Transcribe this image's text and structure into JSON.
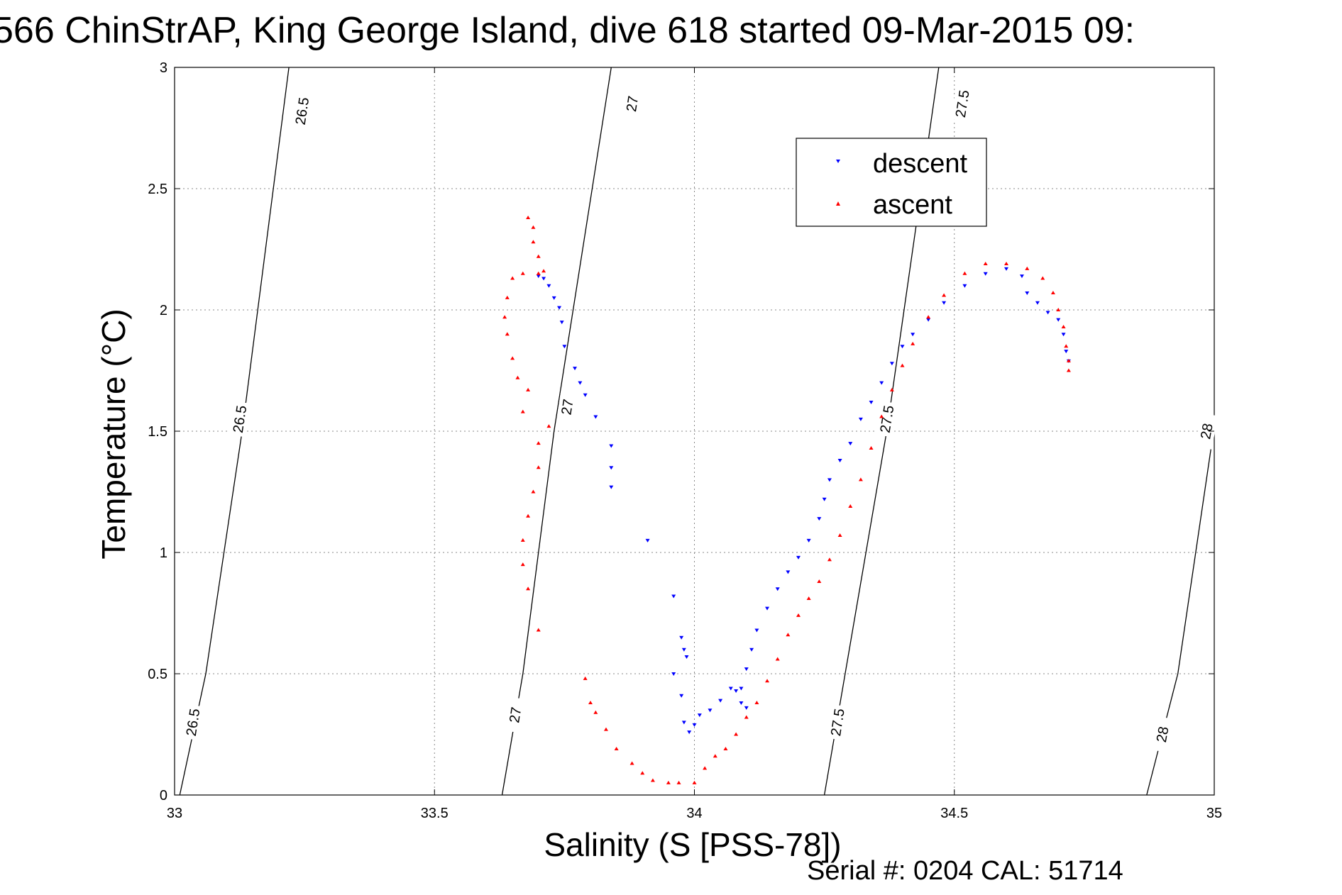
{
  "chart_data": {
    "type": "scatter",
    "title": "566 ChinStrAP, King George Island, dive 618 started 09-Mar-2015 09:",
    "xlabel": "Salinity (S [PSS-78])",
    "ylabel": "Temperature (°C)",
    "xlim": [
      33,
      35
    ],
    "ylim": [
      0,
      3
    ],
    "x_ticks": [
      33,
      33.5,
      34,
      34.5,
      35
    ],
    "y_ticks": [
      0,
      0.5,
      1,
      1.5,
      2,
      2.5,
      3
    ],
    "x_tick_labels": [
      "33",
      "33.5",
      "34",
      "34.5",
      "35"
    ],
    "y_tick_labels": [
      "0",
      "0.5",
      "1",
      "1.5",
      "2",
      "2.5",
      "3"
    ],
    "grid": true,
    "legend_position": "top-right",
    "footer": "Serial #: 0204  CAL: 51714",
    "colors": {
      "descent": "#0000ff",
      "ascent": "#ff0000",
      "contour": "#000000",
      "grid": "#888888"
    },
    "density_contours": [
      {
        "sigma": "26.5",
        "points": [
          [
            33.01,
            0
          ],
          [
            33.06,
            0.5
          ],
          [
            33.13,
            1.5
          ],
          [
            33.22,
            3
          ]
        ],
        "labels": [
          {
            "text": "26.5",
            "x": 33.035,
            "y": 0.3
          },
          {
            "text": "26.5",
            "x": 33.125,
            "y": 1.55
          },
          {
            "text": "26.5",
            "x": 33.245,
            "y": 2.82
          }
        ]
      },
      {
        "sigma": "27",
        "points": [
          [
            33.63,
            0
          ],
          [
            33.67,
            0.5
          ],
          [
            33.73,
            1.5
          ],
          [
            33.84,
            3
          ]
        ],
        "labels": [
          {
            "text": "27",
            "x": 33.655,
            "y": 0.33
          },
          {
            "text": "27",
            "x": 33.755,
            "y": 1.6
          },
          {
            "text": "27",
            "x": 33.88,
            "y": 2.85
          }
        ]
      },
      {
        "sigma": "27.5",
        "points": [
          [
            34.25,
            0
          ],
          [
            34.29,
            0.5
          ],
          [
            34.37,
            1.5
          ],
          [
            34.47,
            3
          ]
        ],
        "labels": [
          {
            "text": "27.5",
            "x": 34.275,
            "y": 0.3
          },
          {
            "text": "27.5",
            "x": 34.37,
            "y": 1.55
          },
          {
            "text": "27.5",
            "x": 34.515,
            "y": 2.85
          }
        ]
      },
      {
        "sigma": "28",
        "points": [
          [
            34.87,
            0
          ],
          [
            34.93,
            0.5
          ],
          [
            35,
            1.52
          ]
        ],
        "labels": [
          {
            "text": "28",
            "x": 34.9,
            "y": 0.25
          },
          {
            "text": "28",
            "x": 34.985,
            "y": 1.5
          }
        ]
      }
    ],
    "series": [
      {
        "name": "descent",
        "marker": "downward triangle",
        "points": [
          [
            33.7,
            2.14
          ],
          [
            33.71,
            2.13
          ],
          [
            33.72,
            2.1
          ],
          [
            33.73,
            2.05
          ],
          [
            33.74,
            2.01
          ],
          [
            33.745,
            1.95
          ],
          [
            33.75,
            1.85
          ],
          [
            33.77,
            1.76
          ],
          [
            33.78,
            1.7
          ],
          [
            33.79,
            1.65
          ],
          [
            33.81,
            1.56
          ],
          [
            33.84,
            1.44
          ],
          [
            33.84,
            1.35
          ],
          [
            33.84,
            1.27
          ],
          [
            33.91,
            1.05
          ],
          [
            33.96,
            0.82
          ],
          [
            33.975,
            0.65
          ],
          [
            33.98,
            0.6
          ],
          [
            33.985,
            0.57
          ],
          [
            33.96,
            0.5
          ],
          [
            33.975,
            0.41
          ],
          [
            33.98,
            0.3
          ],
          [
            33.99,
            0.26
          ],
          [
            34.0,
            0.29
          ],
          [
            34.01,
            0.33
          ],
          [
            34.03,
            0.35
          ],
          [
            34.05,
            0.39
          ],
          [
            34.07,
            0.44
          ],
          [
            34.08,
            0.43
          ],
          [
            34.09,
            0.38
          ],
          [
            34.1,
            0.36
          ],
          [
            34.09,
            0.44
          ],
          [
            34.1,
            0.52
          ],
          [
            34.11,
            0.6
          ],
          [
            34.12,
            0.68
          ],
          [
            34.14,
            0.77
          ],
          [
            34.16,
            0.85
          ],
          [
            34.18,
            0.92
          ],
          [
            34.2,
            0.98
          ],
          [
            34.22,
            1.05
          ],
          [
            34.24,
            1.14
          ],
          [
            34.25,
            1.22
          ],
          [
            34.26,
            1.3
          ],
          [
            34.28,
            1.38
          ],
          [
            34.3,
            1.45
          ],
          [
            34.32,
            1.55
          ],
          [
            34.34,
            1.62
          ],
          [
            34.36,
            1.7
          ],
          [
            34.38,
            1.78
          ],
          [
            34.4,
            1.85
          ],
          [
            34.42,
            1.9
          ],
          [
            34.45,
            1.96
          ],
          [
            34.48,
            2.03
          ],
          [
            34.52,
            2.1
          ],
          [
            34.56,
            2.15
          ],
          [
            34.6,
            2.17
          ],
          [
            34.63,
            2.14
          ],
          [
            34.64,
            2.07
          ],
          [
            34.66,
            2.03
          ],
          [
            34.68,
            1.99
          ],
          [
            34.7,
            1.96
          ],
          [
            34.71,
            1.9
          ],
          [
            34.715,
            1.83
          ],
          [
            34.72,
            1.79
          ]
        ]
      },
      {
        "name": "ascent",
        "marker": "upward triangle",
        "points": [
          [
            33.68,
            2.38
          ],
          [
            33.69,
            2.34
          ],
          [
            33.69,
            2.28
          ],
          [
            33.7,
            2.22
          ],
          [
            33.71,
            2.16
          ],
          [
            33.7,
            2.15
          ],
          [
            33.67,
            2.15
          ],
          [
            33.65,
            2.13
          ],
          [
            33.64,
            2.05
          ],
          [
            33.635,
            1.97
          ],
          [
            33.64,
            1.9
          ],
          [
            33.65,
            1.8
          ],
          [
            33.66,
            1.72
          ],
          [
            33.68,
            1.67
          ],
          [
            33.67,
            1.58
          ],
          [
            33.72,
            1.52
          ],
          [
            33.7,
            1.45
          ],
          [
            33.7,
            1.35
          ],
          [
            33.69,
            1.25
          ],
          [
            33.68,
            1.15
          ],
          [
            33.67,
            1.05
          ],
          [
            33.67,
            0.95
          ],
          [
            33.68,
            0.85
          ],
          [
            33.7,
            0.68
          ],
          [
            33.79,
            0.48
          ],
          [
            33.8,
            0.38
          ],
          [
            33.81,
            0.34
          ],
          [
            33.83,
            0.27
          ],
          [
            33.85,
            0.19
          ],
          [
            33.88,
            0.13
          ],
          [
            33.9,
            0.09
          ],
          [
            33.92,
            0.06
          ],
          [
            33.95,
            0.05
          ],
          [
            33.97,
            0.05
          ],
          [
            34.0,
            0.05
          ],
          [
            34.02,
            0.11
          ],
          [
            34.04,
            0.16
          ],
          [
            34.06,
            0.19
          ],
          [
            34.08,
            0.25
          ],
          [
            34.1,
            0.32
          ],
          [
            34.12,
            0.38
          ],
          [
            34.14,
            0.47
          ],
          [
            34.16,
            0.56
          ],
          [
            34.18,
            0.66
          ],
          [
            34.2,
            0.74
          ],
          [
            34.22,
            0.81
          ],
          [
            34.24,
            0.88
          ],
          [
            34.26,
            0.97
          ],
          [
            34.28,
            1.07
          ],
          [
            34.3,
            1.19
          ],
          [
            34.32,
            1.3
          ],
          [
            34.34,
            1.43
          ],
          [
            34.36,
            1.56
          ],
          [
            34.38,
            1.67
          ],
          [
            34.4,
            1.77
          ],
          [
            34.42,
            1.86
          ],
          [
            34.45,
            1.97
          ],
          [
            34.48,
            2.06
          ],
          [
            34.52,
            2.15
          ],
          [
            34.56,
            2.19
          ],
          [
            34.6,
            2.19
          ],
          [
            34.64,
            2.17
          ],
          [
            34.67,
            2.13
          ],
          [
            34.69,
            2.07
          ],
          [
            34.7,
            2.0
          ],
          [
            34.71,
            1.93
          ],
          [
            34.715,
            1.85
          ],
          [
            34.72,
            1.79
          ],
          [
            34.72,
            1.75
          ]
        ]
      }
    ]
  }
}
